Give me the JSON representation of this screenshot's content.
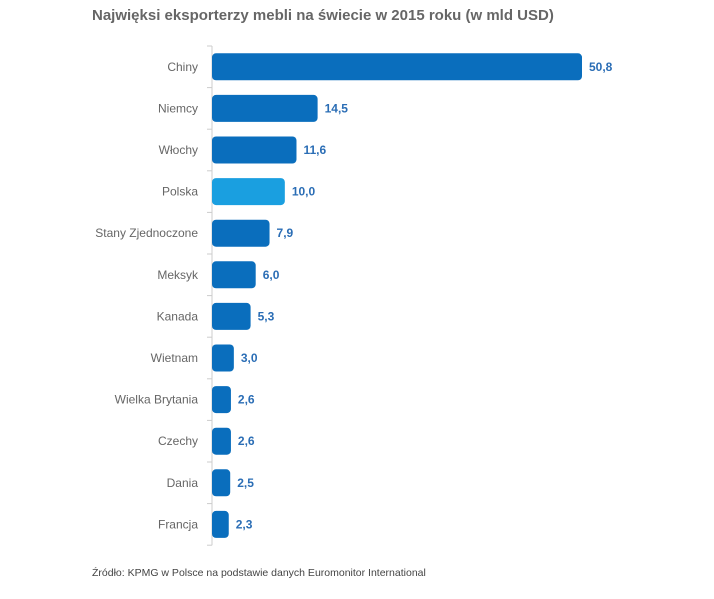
{
  "chart_data": {
    "type": "bar",
    "orientation": "horizontal",
    "title": "Najwięksi eksporterzy mebli na świecie w 2015 roku (w mld USD)",
    "categories": [
      "Chiny",
      "Niemcy",
      "Włochy",
      "Polska",
      "Stany Zjednoczone",
      "Meksyk",
      "Kanada",
      "Wietnam",
      "Wielka Brytania",
      "Czechy",
      "Dania",
      "Francja"
    ],
    "values": [
      50.8,
      14.5,
      11.6,
      10.0,
      7.9,
      6.0,
      5.3,
      3.0,
      2.6,
      2.6,
      2.5,
      2.3
    ],
    "value_labels": [
      "50,8",
      "14,5",
      "11,6",
      "10,0",
      "7,9",
      "6,0",
      "5,3",
      "3,0",
      "2,6",
      "2,6",
      "2,5",
      "2,3"
    ],
    "highlight": "Polska",
    "colors": {
      "bar": "#0a6ebd",
      "highlight": "#1a9fe0",
      "value_text": "#2a6db5",
      "label_text": "#666666"
    },
    "grid": false
  },
  "source": "Źródło: KPMG w Polsce na podstawie danych Euromonitor International"
}
